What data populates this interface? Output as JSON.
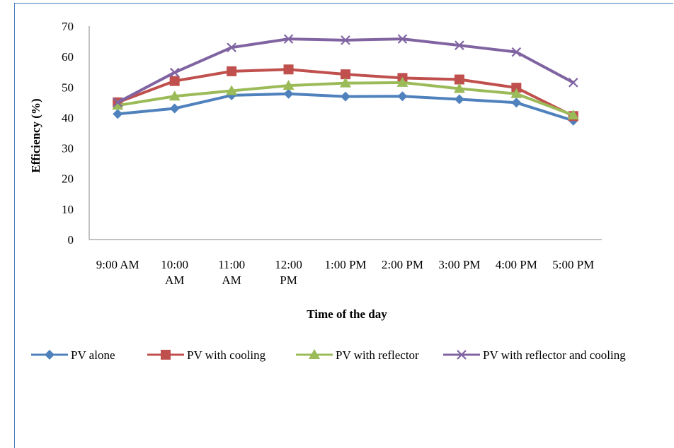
{
  "chart_data": {
    "type": "line",
    "title": "",
    "xlabel": "Time of the day",
    "ylabel": "Efficiency (%)",
    "ylim": [
      0,
      70
    ],
    "yticks": [
      0,
      10,
      20,
      30,
      40,
      50,
      60,
      70
    ],
    "grid": false,
    "legend_position": "bottom",
    "categories": [
      [
        "9:00 AM"
      ],
      [
        "10:00",
        "AM"
      ],
      [
        "11:00",
        "AM"
      ],
      [
        "12:00",
        "PM"
      ],
      [
        "1:00 PM"
      ],
      [
        "2:00 PM"
      ],
      [
        "3:00 PM"
      ],
      [
        "4:00 PM"
      ],
      [
        "5:00 PM"
      ]
    ],
    "series": [
      {
        "name": "PV alone",
        "color": "#4f81bd",
        "marker": "diamond",
        "values": [
          41.2,
          43.0,
          47.3,
          47.8,
          46.9,
          47.0,
          46.0,
          44.9,
          39.0
        ]
      },
      {
        "name": "PV with cooling",
        "color": "#c0504d",
        "marker": "square",
        "values": [
          45.0,
          52.0,
          55.2,
          55.8,
          54.2,
          53.0,
          52.5,
          49.8,
          40.5
        ]
      },
      {
        "name": "PV with reflector",
        "color": "#9bbb59",
        "marker": "triangle",
        "values": [
          44.0,
          47.0,
          48.8,
          50.5,
          51.3,
          51.5,
          49.5,
          47.8,
          40.8
        ]
      },
      {
        "name": "PV with reflector and cooling",
        "color": "#8064a2",
        "marker": "x",
        "values": [
          45.0,
          54.8,
          63.0,
          65.8,
          65.4,
          65.8,
          63.7,
          61.5,
          51.5
        ]
      }
    ]
  }
}
